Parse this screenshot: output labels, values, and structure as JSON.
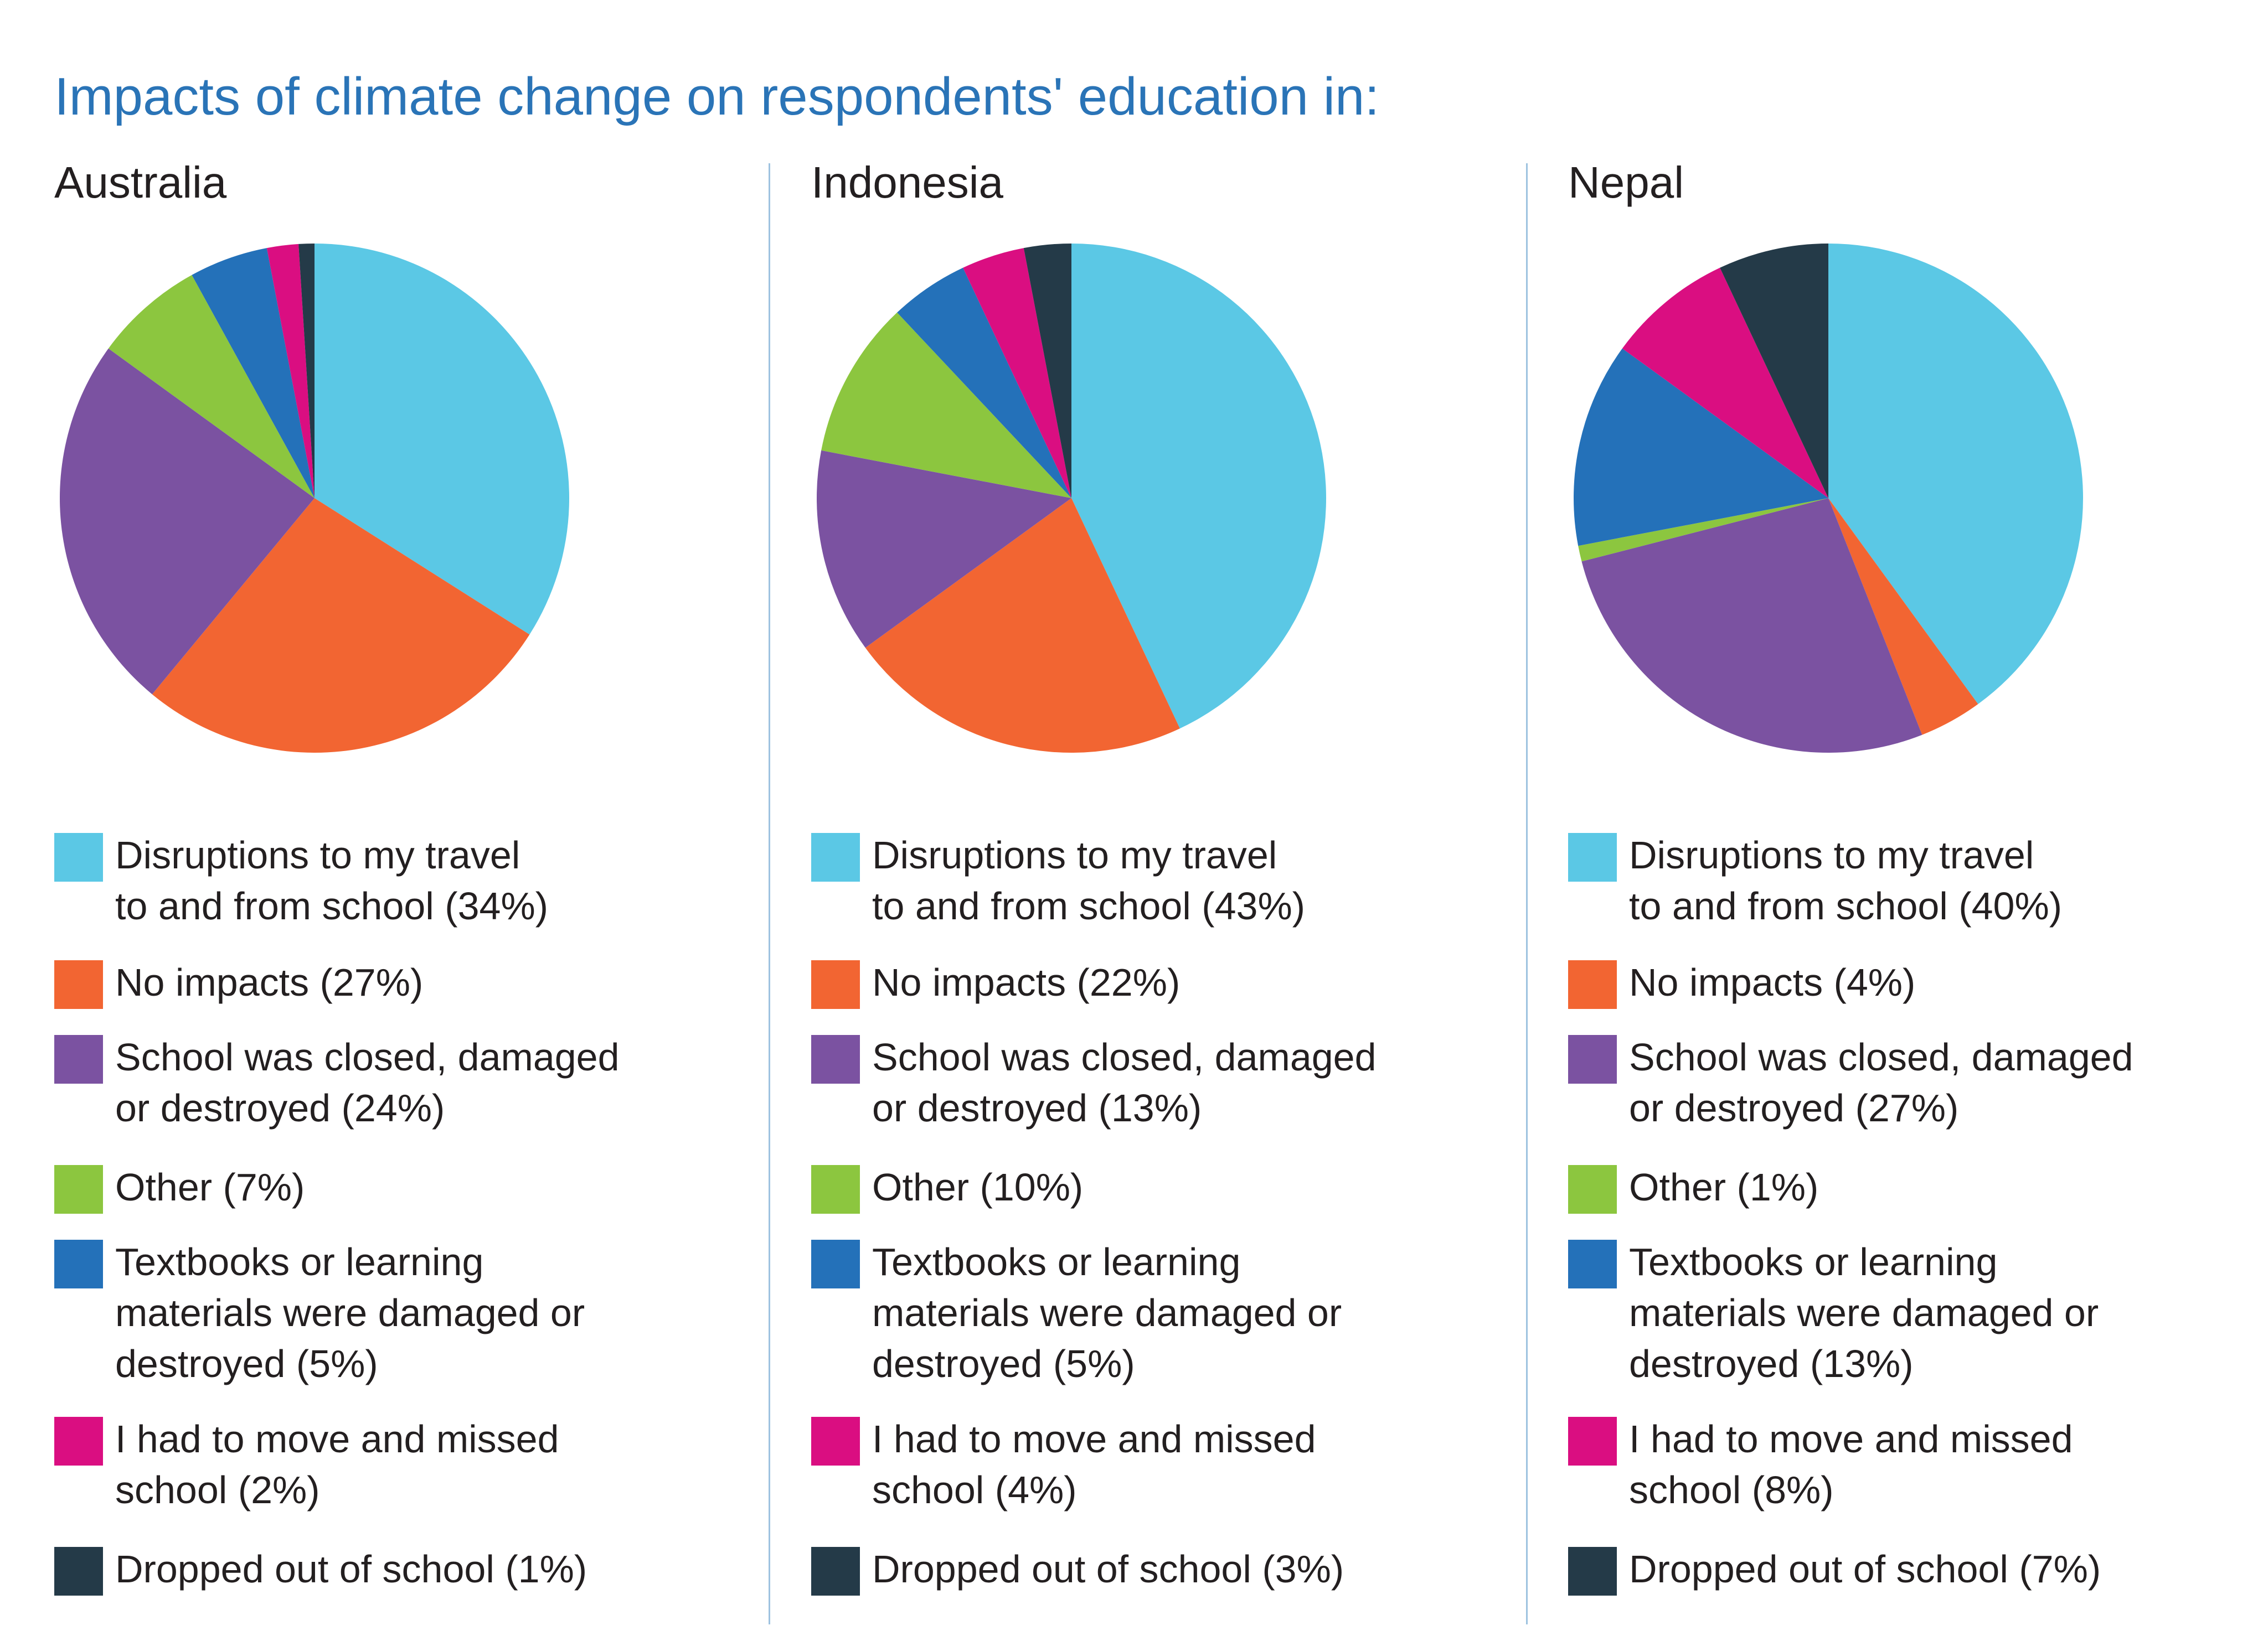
{
  "title": "Impacts of climate change on respondents' education in:",
  "colors": {
    "travel": "#5bc8e5",
    "no_impacts": "#f26532",
    "school_closed": "#7b52a1",
    "other": "#8cc63f",
    "textbooks": "#2471b9",
    "moved": "#da0e81",
    "dropped": "#243a48"
  },
  "chart_data": [
    {
      "type": "pie",
      "title": "Australia",
      "categories": [
        "Disruptions to my travel to and from school",
        "No impacts",
        "School was closed, damaged or destroyed",
        "Other",
        "Textbooks or learning materials were damaged or destroyed",
        "I had to move and missed school",
        "Dropped out of school"
      ],
      "values": [
        34,
        27,
        24,
        7,
        5,
        2,
        1
      ],
      "legend": [
        [
          "Disruptions to my travel",
          "to and from school (34%)"
        ],
        [
          "No impacts (27%)"
        ],
        [
          "School was closed, damaged",
          "or destroyed (24%)"
        ],
        [
          "Other (7%)"
        ],
        [
          "Textbooks or learning",
          "materials were damaged or",
          "destroyed (5%)"
        ],
        [
          "I had to move and missed",
          "school (2%)"
        ],
        [
          "Dropped out of school (1%)"
        ]
      ]
    },
    {
      "type": "pie",
      "title": "Indonesia",
      "categories": [
        "Disruptions to my travel to and from school",
        "No impacts",
        "School was closed, damaged or destroyed",
        "Other",
        "Textbooks or learning materials were damaged or destroyed",
        "I had to move and missed school",
        "Dropped out of school"
      ],
      "values": [
        43,
        22,
        13,
        10,
        5,
        4,
        3
      ],
      "legend": [
        [
          "Disruptions to my travel",
          "to and from school (43%)"
        ],
        [
          "No impacts (22%)"
        ],
        [
          "School was closed, damaged",
          "or destroyed (13%)"
        ],
        [
          "Other (10%)"
        ],
        [
          "Textbooks or learning",
          "materials were damaged or",
          "destroyed (5%)"
        ],
        [
          "I had to move and missed",
          "school (4%)"
        ],
        [
          "Dropped out of school (3%)"
        ]
      ]
    },
    {
      "type": "pie",
      "title": "Nepal",
      "categories": [
        "Disruptions to my travel to and from school",
        "No impacts",
        "School was closed, damaged or destroyed",
        "Other",
        "Textbooks or learning materials were damaged or destroyed",
        "I had to move and missed school",
        "Dropped out of school"
      ],
      "values": [
        40,
        4,
        27,
        1,
        13,
        8,
        7
      ],
      "legend": [
        [
          "Disruptions to my travel",
          "to and from school (40%)"
        ],
        [
          "No impacts (4%)"
        ],
        [
          "School was closed, damaged",
          "or destroyed (27%)"
        ],
        [
          "Other (1%)"
        ],
        [
          "Textbooks or learning",
          "materials were damaged or",
          "destroyed (13%)"
        ],
        [
          "I had to move and missed",
          "school (8%)"
        ],
        [
          "Dropped out of school (7%)"
        ]
      ]
    }
  ]
}
